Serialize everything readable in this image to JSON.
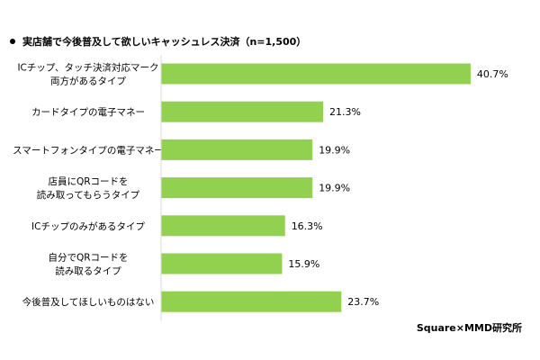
{
  "chart_data": {
    "type": "bar",
    "orientation": "horizontal",
    "title": "実店舗で今後普及して欲しいキャッシュレス決済（n=1,500）",
    "categories": [
      [
        "ICチップ、タッチ決済対応マーク",
        "両方があるタイプ"
      ],
      [
        "カードタイプの電子マネー"
      ],
      [
        "スマートフォンタイプの電子マネー"
      ],
      [
        "店員にQRコードを",
        "読み取ってもらうタイプ"
      ],
      [
        "ICチップのみがあるタイプ"
      ],
      [
        "自分でQRコードを",
        "読み取るタイプ"
      ],
      [
        "今後普及してほしいものはない"
      ]
    ],
    "values": [
      40.7,
      21.3,
      19.9,
      19.9,
      16.3,
      15.9,
      23.7
    ],
    "value_labels": [
      "40.7%",
      "21.3%",
      "19.9%",
      "19.9%",
      "16.3%",
      "15.9%",
      "23.7%"
    ],
    "unit": "%",
    "bar_color": "#92d050",
    "axis_line_color": "#d9d9d9",
    "grid": false,
    "legend": "none"
  },
  "source": "Square×MMD研究所"
}
